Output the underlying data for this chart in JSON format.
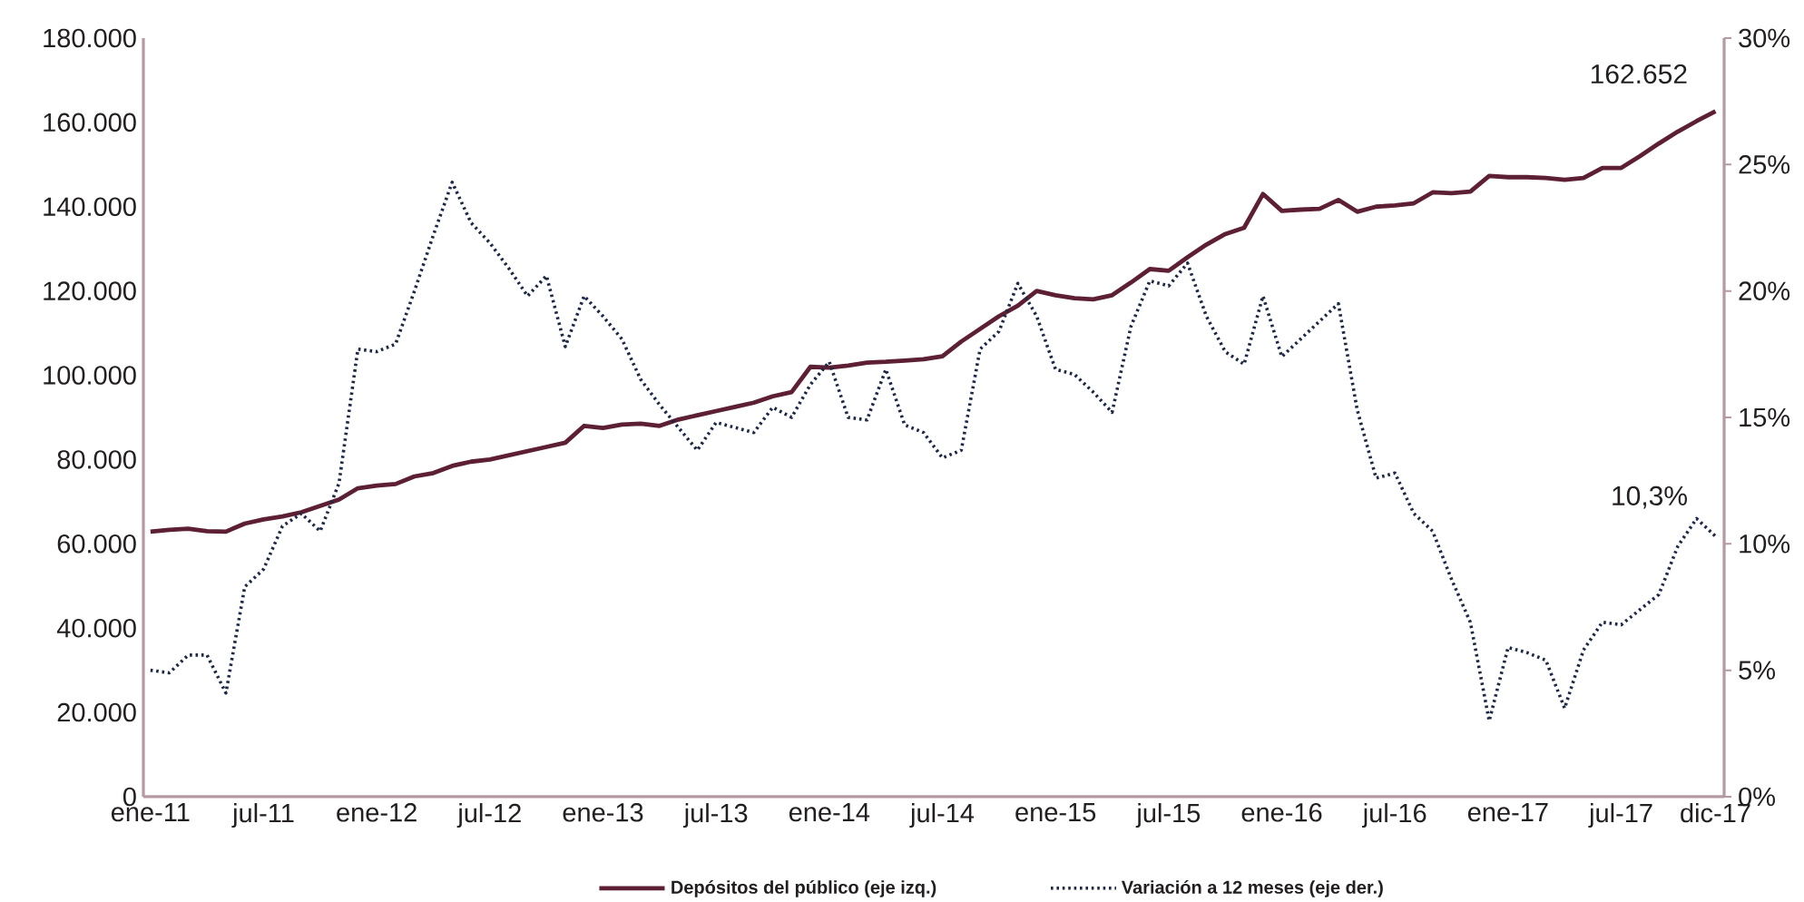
{
  "chart_data": {
    "type": "line",
    "x": [
      "2011-01",
      "2011-02",
      "2011-03",
      "2011-04",
      "2011-05",
      "2011-06",
      "2011-07",
      "2011-08",
      "2011-09",
      "2011-10",
      "2011-11",
      "2011-12",
      "2012-01",
      "2012-02",
      "2012-03",
      "2012-04",
      "2012-05",
      "2012-06",
      "2012-07",
      "2012-08",
      "2012-09",
      "2012-10",
      "2012-11",
      "2012-12",
      "2013-01",
      "2013-02",
      "2013-03",
      "2013-04",
      "2013-05",
      "2013-06",
      "2013-07",
      "2013-08",
      "2013-09",
      "2013-10",
      "2013-11",
      "2013-12",
      "2014-01",
      "2014-02",
      "2014-03",
      "2014-04",
      "2014-05",
      "2014-06",
      "2014-07",
      "2014-08",
      "2014-09",
      "2014-10",
      "2014-11",
      "2014-12",
      "2015-01",
      "2015-02",
      "2015-03",
      "2015-04",
      "2015-05",
      "2015-06",
      "2015-07",
      "2015-08",
      "2015-09",
      "2015-10",
      "2015-11",
      "2015-12",
      "2016-01",
      "2016-02",
      "2016-03",
      "2016-04",
      "2016-05",
      "2016-06",
      "2016-07",
      "2016-08",
      "2016-09",
      "2016-10",
      "2016-11",
      "2016-12",
      "2017-01",
      "2017-02",
      "2017-03",
      "2017-04",
      "2017-05",
      "2017-06",
      "2017-07",
      "2017-08",
      "2017-09",
      "2017-10",
      "2017-11",
      "2017-12"
    ],
    "xlim": [
      "2010-12-20",
      "2017-12-15"
    ],
    "xticks": [
      {
        "value": "2011-01",
        "label": "ene-11"
      },
      {
        "value": "2011-07",
        "label": "jul-11"
      },
      {
        "value": "2012-01",
        "label": "ene-12"
      },
      {
        "value": "2012-07",
        "label": "jul-12"
      },
      {
        "value": "2013-01",
        "label": "ene-13"
      },
      {
        "value": "2013-07",
        "label": "jul-13"
      },
      {
        "value": "2014-01",
        "label": "ene-14"
      },
      {
        "value": "2014-07",
        "label": "jul-14"
      },
      {
        "value": "2015-01",
        "label": "ene-15"
      },
      {
        "value": "2015-07",
        "label": "jul-15"
      },
      {
        "value": "2016-01",
        "label": "ene-16"
      },
      {
        "value": "2016-07",
        "label": "jul-16"
      },
      {
        "value": "2017-01",
        "label": "ene-17"
      },
      {
        "value": "2017-07",
        "label": "jul-17"
      },
      {
        "value": "2017-12",
        "label": "dic-17"
      }
    ],
    "ylim": [
      0,
      180000
    ],
    "yticks": [
      0,
      {
        "value": 20000,
        "label": "20.000"
      },
      {
        "value": 40000,
        "label": "40.000"
      },
      {
        "value": 60000,
        "label": "60.000"
      },
      {
        "value": 80000,
        "label": "80.000"
      },
      {
        "value": 100000,
        "label": "100.000"
      },
      {
        "value": 120000,
        "label": "120.000"
      },
      {
        "value": 140000,
        "label": "140.000"
      },
      {
        "value": 160000,
        "label": "160.000"
      },
      {
        "value": 180000,
        "label": "180.000"
      }
    ],
    "y2lim": [
      0,
      30
    ],
    "y2ticks": [
      {
        "value": 0,
        "label": "0%"
      },
      {
        "value": 5,
        "label": "5%"
      },
      {
        "value": 10,
        "label": "10%"
      },
      {
        "value": 15,
        "label": "15%"
      },
      {
        "value": 20,
        "label": "20%"
      },
      {
        "value": 25,
        "label": "25%"
      },
      {
        "value": 30,
        "label": "30%"
      }
    ],
    "legend": "bottom",
    "series": [
      {
        "name": "Depósitos del público (eje izq.)",
        "color": "#5c1f33",
        "line_style": "solid",
        "values": [
          62900,
          63300,
          63600,
          63000,
          62900,
          64800,
          65800,
          66500,
          67500,
          69000,
          70500,
          73200,
          73800,
          74200,
          76000,
          76800,
          78500,
          79500,
          80000,
          81000,
          82000,
          83000,
          84000,
          88000,
          87500,
          88300,
          88500,
          88000,
          89500,
          90500,
          91500,
          92500,
          93500,
          95000,
          96000,
          102000,
          101800,
          102300,
          103000,
          103200,
          103500,
          103800,
          104500,
          108000,
          111000,
          114000,
          116500,
          120000,
          119000,
          118300,
          118000,
          119000,
          122000,
          125200,
          124800,
          128000,
          131000,
          133500,
          135000,
          143000,
          139000,
          139300,
          139500,
          141600,
          138800,
          140000,
          140300,
          140800,
          143400,
          143200,
          143600,
          147300,
          147000,
          147000,
          146800,
          146400,
          146800,
          149200,
          149200,
          152000,
          155000,
          157800,
          160300,
          162652
        ],
        "value_labels": [
          null,
          null,
          null,
          null,
          null,
          null,
          null,
          null,
          null,
          null,
          null,
          null,
          null,
          null,
          null,
          null,
          null,
          null,
          null,
          null,
          null,
          null,
          null,
          null,
          null,
          null,
          null,
          null,
          null,
          null,
          null,
          null,
          null,
          null,
          null,
          null,
          null,
          null,
          null,
          null,
          null,
          null,
          null,
          null,
          null,
          null,
          null,
          null,
          null,
          null,
          null,
          null,
          null,
          null,
          null,
          null,
          null,
          null,
          null,
          null,
          null,
          null,
          null,
          null,
          null,
          null,
          null,
          null,
          null,
          null,
          null,
          null,
          null,
          null,
          null,
          null,
          null,
          null,
          null,
          null,
          null,
          null,
          null,
          "162.652"
        ]
      },
      {
        "name": "Variación a 12 meses (eje der.)",
        "color": "#1c2845",
        "axis": "y2",
        "line_style": "dotted",
        "values": [
          5.0,
          4.9,
          5.6,
          5.6,
          4.1,
          8.3,
          9.0,
          10.7,
          11.2,
          10.5,
          12.4,
          17.7,
          17.6,
          17.9,
          20.0,
          22.2,
          24.3,
          22.7,
          21.9,
          20.9,
          19.8,
          20.6,
          17.8,
          19.8,
          19.0,
          18.1,
          16.5,
          15.5,
          14.6,
          13.7,
          14.8,
          14.6,
          14.4,
          15.4,
          15.0,
          16.3,
          17.2,
          15.0,
          14.9,
          16.9,
          14.7,
          14.4,
          13.4,
          13.7,
          17.7,
          18.4,
          20.3,
          19.0,
          16.9,
          16.7,
          16.0,
          15.2,
          18.6,
          20.4,
          20.2,
          21.1,
          19.0,
          17.6,
          17.1,
          19.8,
          17.4,
          18.1,
          18.8,
          19.5,
          15.3,
          12.6,
          12.8,
          11.2,
          10.5,
          8.6,
          6.9,
          3.0,
          5.9,
          5.7,
          5.4,
          3.5,
          5.8,
          6.9,
          6.8,
          7.4,
          8.0,
          9.9,
          11.0,
          10.3
        ],
        "value_labels": [
          null,
          null,
          null,
          null,
          null,
          null,
          null,
          null,
          null,
          null,
          null,
          null,
          null,
          null,
          null,
          null,
          null,
          null,
          null,
          null,
          null,
          null,
          null,
          null,
          null,
          null,
          null,
          null,
          null,
          null,
          null,
          null,
          null,
          null,
          null,
          null,
          null,
          null,
          null,
          null,
          null,
          null,
          null,
          null,
          null,
          null,
          null,
          null,
          null,
          null,
          null,
          null,
          null,
          null,
          null,
          null,
          null,
          null,
          null,
          null,
          null,
          null,
          null,
          null,
          null,
          null,
          null,
          null,
          null,
          null,
          null,
          null,
          null,
          null,
          null,
          null,
          null,
          null,
          null,
          null,
          null,
          null,
          null,
          "10,3%"
        ]
      }
    ]
  }
}
